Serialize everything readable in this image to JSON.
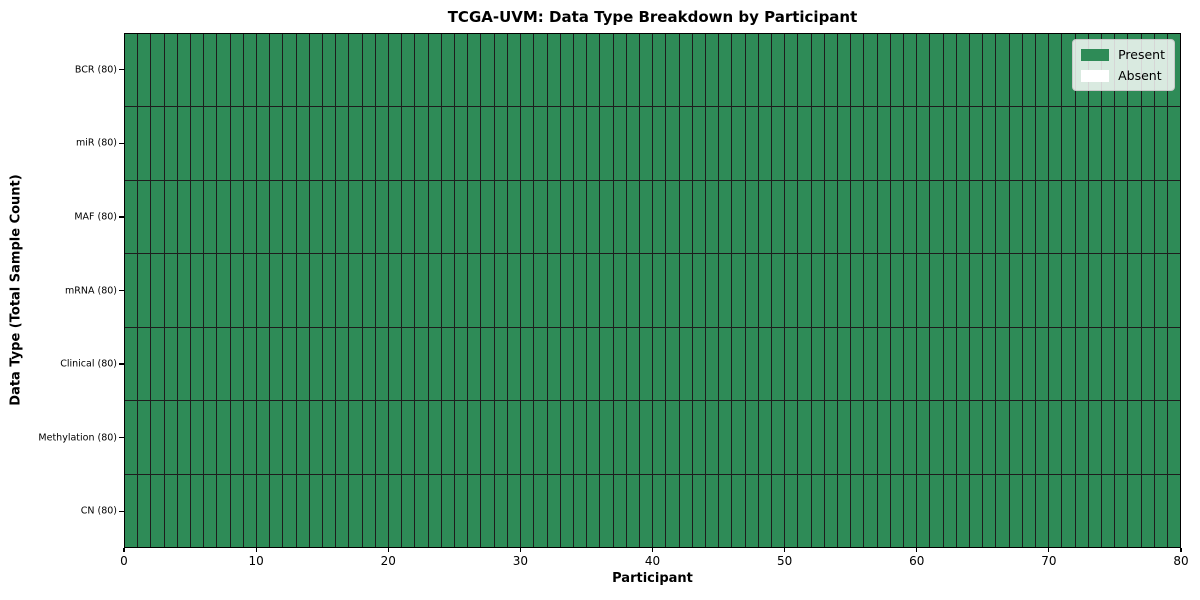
{
  "chart_data": {
    "type": "heatmap",
    "title": "TCGA-UVM: Data Type Breakdown by Participant",
    "xlabel": "Participant",
    "ylabel": "Data Type (Total Sample Count)",
    "xlim": [
      0,
      80
    ],
    "x_ticks": [
      0,
      10,
      20,
      30,
      40,
      50,
      60,
      70,
      80
    ],
    "n_participants": 80,
    "grid": "cell-borders",
    "rows": [
      {
        "label": "BCR (80)",
        "data_type": "BCR",
        "total_samples": 80,
        "present": 80,
        "absent": 0
      },
      {
        "label": "miR (80)",
        "data_type": "miR",
        "total_samples": 80,
        "present": 80,
        "absent": 0
      },
      {
        "label": "MAF (80)",
        "data_type": "MAF",
        "total_samples": 80,
        "present": 80,
        "absent": 0
      },
      {
        "label": "mRNA (80)",
        "data_type": "mRNA",
        "total_samples": 80,
        "present": 80,
        "absent": 0
      },
      {
        "label": "Clinical (80)",
        "data_type": "Clinical",
        "total_samples": 80,
        "present": 80,
        "absent": 0
      },
      {
        "label": "Methylation (80)",
        "data_type": "Methylation",
        "total_samples": 80,
        "present": 80,
        "absent": 0
      },
      {
        "label": "CN (80)",
        "data_type": "CN",
        "total_samples": 80,
        "present": 80,
        "absent": 0
      }
    ],
    "legend": {
      "position": "upper right",
      "entries": [
        {
          "label": "Present",
          "color": "#2e8b57"
        },
        {
          "label": "Absent",
          "color": "#ffffff"
        }
      ]
    },
    "colors": {
      "present": "#2e8b57",
      "absent": "#ffffff",
      "cell_edge": "#1d1d1d",
      "spine": "#000000"
    }
  }
}
